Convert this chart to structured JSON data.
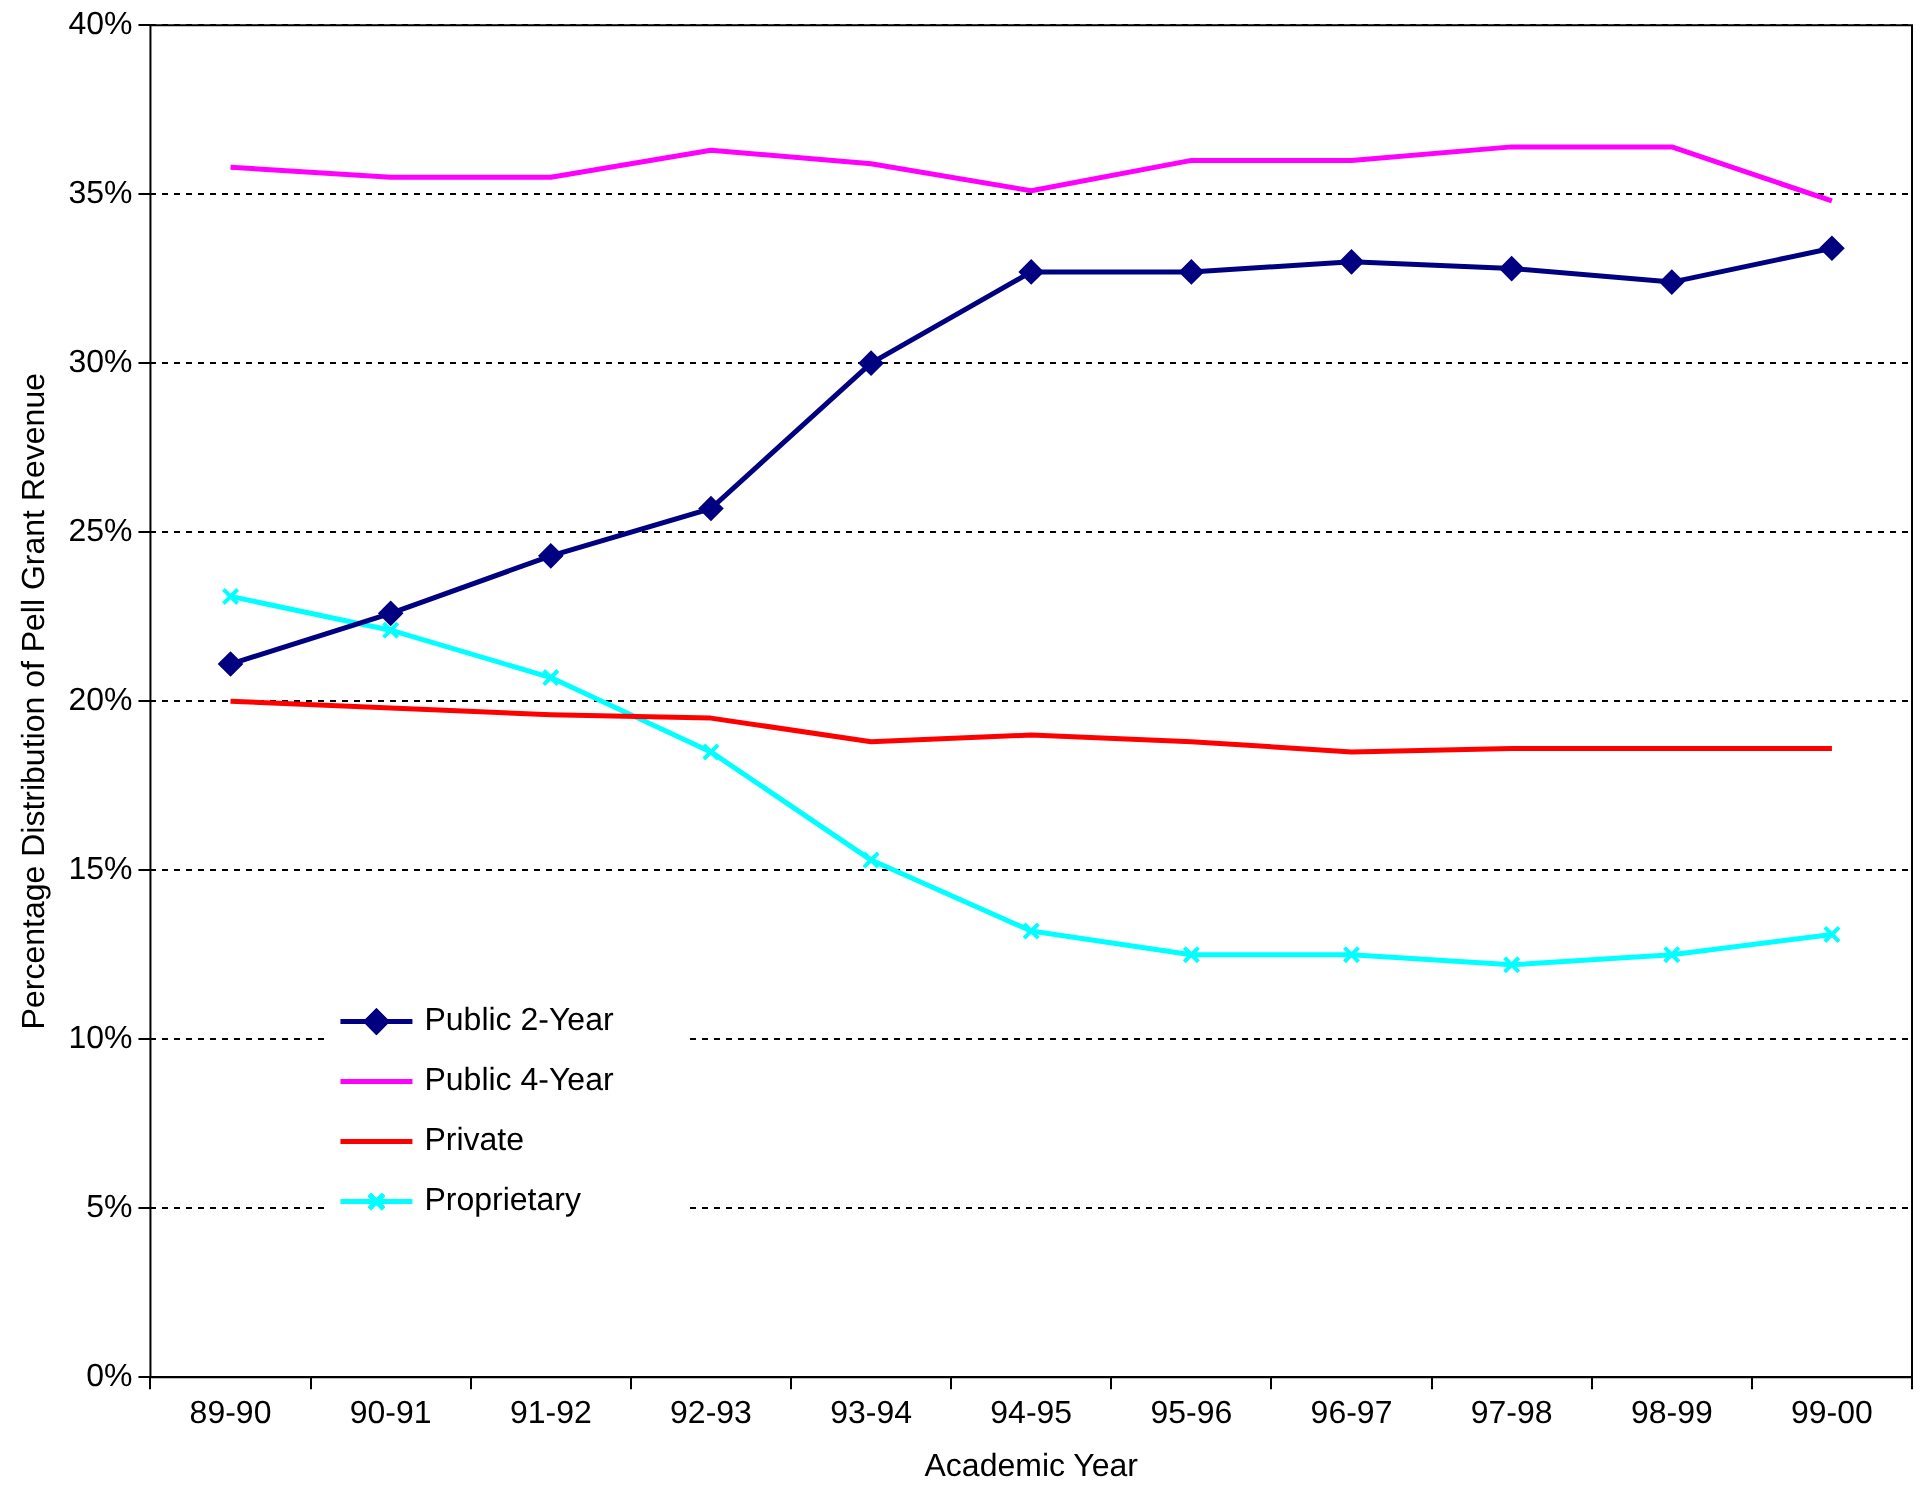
{
  "chart_data": {
    "type": "line",
    "xlabel": "Academic Year",
    "ylabel": "Percentage Distribution of Pell Grant Revenue",
    "categories": [
      "89-90",
      "90-91",
      "91-92",
      "92-93",
      "93-94",
      "94-95",
      "95-96",
      "96-97",
      "97-98",
      "98-99",
      "99-00"
    ],
    "series": [
      {
        "name": "Public 2-Year",
        "color": "#000080",
        "marker": "diamond",
        "values": [
          21.1,
          22.6,
          24.3,
          25.7,
          30.0,
          32.7,
          32.7,
          33.0,
          32.8,
          32.4,
          33.4
        ]
      },
      {
        "name": "Public 4-Year",
        "color": "#ff00ff",
        "marker": "none",
        "values": [
          35.8,
          35.5,
          35.5,
          36.3,
          35.9,
          35.1,
          36.0,
          36.0,
          36.4,
          36.4,
          34.8
        ]
      },
      {
        "name": "Private",
        "color": "#ff0000",
        "marker": "none",
        "values": [
          20.0,
          19.8,
          19.6,
          19.5,
          18.8,
          19.0,
          18.8,
          18.5,
          18.6,
          18.6,
          18.6
        ]
      },
      {
        "name": "Proprietary",
        "color": "#00ffff",
        "marker": "cross",
        "values": [
          23.1,
          22.1,
          20.7,
          18.5,
          15.3,
          13.2,
          12.5,
          12.5,
          12.2,
          12.5,
          13.1
        ]
      }
    ],
    "ylim": [
      0,
      40
    ],
    "yticks": [
      {
        "value": 0,
        "label": "0%"
      },
      {
        "value": 5,
        "label": "5%"
      },
      {
        "value": 10,
        "label": "10%"
      },
      {
        "value": 15,
        "label": "15%"
      },
      {
        "value": 20,
        "label": "20%"
      },
      {
        "value": 25,
        "label": "25%"
      },
      {
        "value": 30,
        "label": "30%"
      },
      {
        "value": 35,
        "label": "35%"
      },
      {
        "value": 40,
        "label": "40%"
      }
    ],
    "grid": "y",
    "legend": "bottom left",
    "line_style": "solid"
  }
}
